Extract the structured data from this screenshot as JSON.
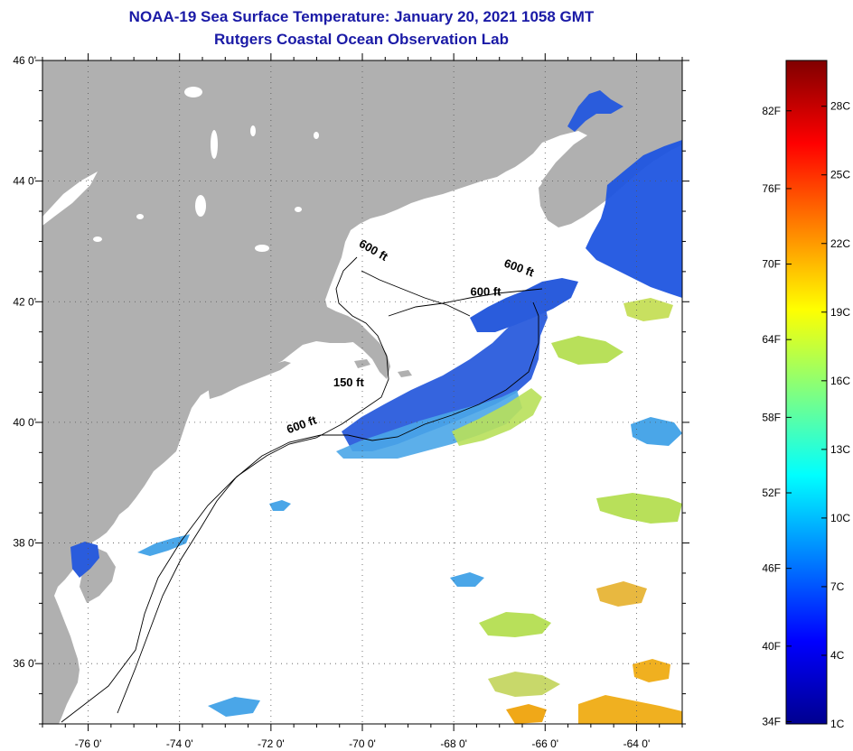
{
  "title": {
    "line1": "NOAA-19 Sea Surface Temperature:  January 20, 2021 1058 GMT",
    "line2": "Rutgers Coastal Ocean Observation Lab"
  },
  "map": {
    "lon_range": [
      -77,
      -63
    ],
    "lat_range": [
      35,
      46
    ],
    "lon_ticks": [
      {
        "lon": -76,
        "label": "-76 0'"
      },
      {
        "lon": -74,
        "label": "-74 0'"
      },
      {
        "lon": -72,
        "label": "-72 0'"
      },
      {
        "lon": -70,
        "label": "-70 0'"
      },
      {
        "lon": -68,
        "label": "-68 0'"
      },
      {
        "lon": -66,
        "label": "-66 0'"
      },
      {
        "lon": -64,
        "label": "-64 0'"
      }
    ],
    "lat_ticks": [
      {
        "lat": 46,
        "label": "46 0'"
      },
      {
        "lat": 44,
        "label": "44 0'"
      },
      {
        "lat": 42,
        "label": "42 0'"
      },
      {
        "lat": 40,
        "label": "40 0'"
      },
      {
        "lat": 38,
        "label": "38 0'"
      },
      {
        "lat": 36,
        "label": "36 0'"
      }
    ],
    "contour_labels": [
      {
        "text": "600 ft",
        "lon": -69.8,
        "lat": 42.8
      },
      {
        "text": "600 ft",
        "lon": -66.6,
        "lat": 42.5
      },
      {
        "text": "600 ft",
        "lon": -67.3,
        "lat": 42.1
      },
      {
        "text": "150 ft",
        "lon": -70.3,
        "lat": 40.6
      },
      {
        "text": "600 ft",
        "lon": -71.3,
        "lat": 39.9
      }
    ]
  },
  "colorbar": {
    "fahrenheit": [
      {
        "label": "82F",
        "celsius": 27.8
      },
      {
        "label": "76F",
        "celsius": 24.4
      },
      {
        "label": "70F",
        "celsius": 21.1
      },
      {
        "label": "64F",
        "celsius": 17.8
      },
      {
        "label": "58F",
        "celsius": 14.4
      },
      {
        "label": "52F",
        "celsius": 11.1
      },
      {
        "label": "46F",
        "celsius": 7.8
      },
      {
        "label": "40F",
        "celsius": 4.4
      },
      {
        "label": "34F",
        "celsius": 1.1
      }
    ],
    "celsius": [
      {
        "label": "28C",
        "celsius": 28
      },
      {
        "label": "25C",
        "celsius": 25
      },
      {
        "label": "22C",
        "celsius": 22
      },
      {
        "label": "19C",
        "celsius": 19
      },
      {
        "label": "16C",
        "celsius": 16
      },
      {
        "label": "13C",
        "celsius": 13
      },
      {
        "label": "10C",
        "celsius": 10
      },
      {
        "label": "7C",
        "celsius": 7
      },
      {
        "label": "4C",
        "celsius": 4
      },
      {
        "label": "1C",
        "celsius": 1
      }
    ],
    "range_c": [
      1,
      30
    ],
    "colors": [
      "#00008f",
      "#0000ff",
      "#0080ff",
      "#00ffff",
      "#80ff80",
      "#ffff00",
      "#ff8000",
      "#ff0000",
      "#800000"
    ]
  },
  "colors": {
    "land": "#b0b0b0",
    "title": "#1a1aa6",
    "water_cold": "#2a5cdc",
    "water_cool": "#4aa6e8",
    "water_mild": "#b8e05a",
    "water_warm": "#f0b020"
  }
}
